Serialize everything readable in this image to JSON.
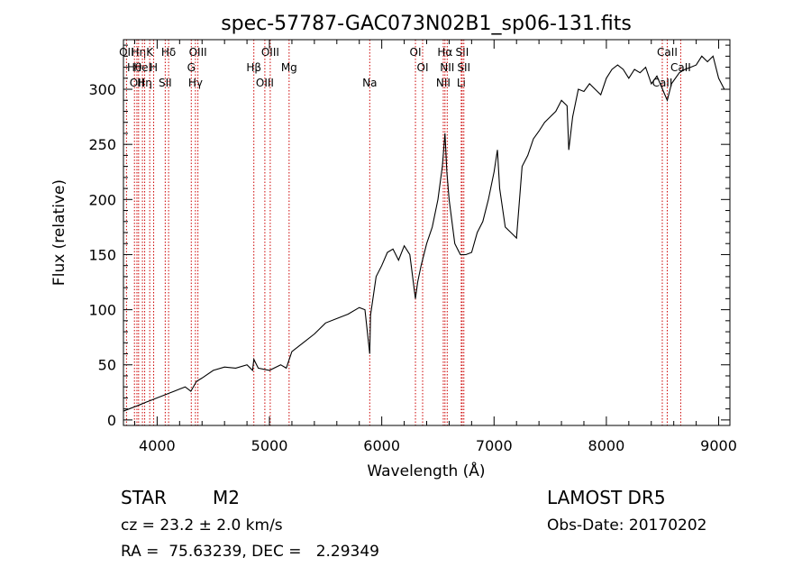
{
  "chart_data": {
    "type": "line",
    "title": "spec-57787-GAC073N02B1_sp06-131.fits",
    "xlabel": "Wavelength (Å)",
    "ylabel": "Flux (relative)",
    "xlim": [
      3700,
      9100
    ],
    "ylim": [
      -5,
      345
    ],
    "x_ticks": [
      4000,
      5000,
      6000,
      7000,
      8000,
      9000
    ],
    "y_ticks": [
      0,
      50,
      100,
      150,
      200,
      250,
      300
    ],
    "x_tick_labels": [
      "4000",
      "5000",
      "6000",
      "7000",
      "8000",
      "9000"
    ],
    "y_tick_labels": [
      "0",
      "50",
      "100",
      "150",
      "200",
      "250",
      "300"
    ],
    "grid": false,
    "series": [
      {
        "color": "#000000",
        "x": [
          3700,
          3750,
          3800,
          3850,
          3900,
          3950,
          4000,
          4050,
          4100,
          4150,
          4200,
          4250,
          4300,
          4350,
          4400,
          4500,
          4600,
          4700,
          4800,
          4850,
          4861,
          4900,
          5000,
          5100,
          5150,
          5200,
          5300,
          5400,
          5500,
          5600,
          5700,
          5800,
          5850,
          5893,
          5900,
          5950,
          6000,
          6050,
          6100,
          6150,
          6200,
          6250,
          6300,
          6320,
          6350,
          6400,
          6450,
          6500,
          6540,
          6563,
          6580,
          6600,
          6650,
          6700,
          6750,
          6800,
          6850,
          6900,
          6950,
          7000,
          7030,
          7050,
          7100,
          7150,
          7200,
          7250,
          7300,
          7350,
          7400,
          7450,
          7500,
          7550,
          7600,
          7650,
          7665,
          7700,
          7750,
          7800,
          7850,
          7900,
          7950,
          8000,
          8050,
          8100,
          8150,
          8200,
          8250,
          8300,
          8350,
          8400,
          8450,
          8500,
          8542,
          8580,
          8650,
          8700,
          8750,
          8800,
          8850,
          8900,
          8950,
          9000,
          9050
        ],
        "y": [
          8,
          10,
          12,
          14,
          16,
          18,
          20,
          22,
          24,
          26,
          28,
          30,
          26,
          35,
          38,
          45,
          48,
          47,
          50,
          45,
          55,
          47,
          45,
          50,
          47,
          62,
          70,
          78,
          88,
          92,
          96,
          102,
          100,
          60,
          95,
          130,
          140,
          152,
          155,
          145,
          158,
          150,
          110,
          125,
          140,
          160,
          175,
          200,
          230,
          260,
          225,
          200,
          160,
          150,
          150,
          152,
          170,
          180,
          200,
          225,
          245,
          210,
          175,
          170,
          165,
          230,
          240,
          255,
          262,
          270,
          275,
          280,
          290,
          285,
          245,
          275,
          300,
          298,
          305,
          300,
          295,
          310,
          318,
          322,
          318,
          310,
          318,
          315,
          320,
          305,
          312,
          300,
          290,
          305,
          315,
          318,
          320,
          322,
          330,
          325,
          330,
          310,
          300
        ]
      }
    ],
    "line_ids": [
      {
        "w": 3727,
        "label": "OII"
      },
      {
        "w": 3798,
        "label": "Hθ"
      },
      {
        "w": 3820,
        "label": "OII"
      },
      {
        "w": 3835,
        "label": "Hη"
      },
      {
        "w": 3869,
        "label": "HeI"
      },
      {
        "w": 3889,
        "label": "Hη"
      },
      {
        "w": 3934,
        "label": "K"
      },
      {
        "w": 3969,
        "label": "H"
      },
      {
        "w": 4072,
        "label": "SII"
      },
      {
        "w": 4102,
        "label": "Hδ"
      },
      {
        "w": 4304,
        "label": "G"
      },
      {
        "w": 4341,
        "label": "Hγ"
      },
      {
        "w": 4363,
        "label": "OIII"
      },
      {
        "w": 4861,
        "label": "Hβ"
      },
      {
        "w": 4959,
        "label": "OIII"
      },
      {
        "w": 5007,
        "label": "OIII"
      },
      {
        "w": 5175,
        "label": "Mg"
      },
      {
        "w": 5893,
        "label": "Na"
      },
      {
        "w": 6300,
        "label": "OI"
      },
      {
        "w": 6364,
        "label": "OI"
      },
      {
        "w": 6548,
        "label": "NII"
      },
      {
        "w": 6563,
        "label": "Hα"
      },
      {
        "w": 6583,
        "label": "NII"
      },
      {
        "w": 6708,
        "label": "Li"
      },
      {
        "w": 6716,
        "label": "SII"
      },
      {
        "w": 6731,
        "label": "SII"
      },
      {
        "w": 8498,
        "label": "CaII"
      },
      {
        "w": 8542,
        "label": "CaII"
      },
      {
        "w": 8662,
        "label": "CaII"
      }
    ],
    "line_id_color": "#cc0000"
  },
  "info": {
    "object_type": "STAR",
    "subclass": "M2",
    "survey": "LAMOST DR5",
    "redshift": "cz = 23.2 ± 2.0 km/s",
    "obs_date": "Obs-Date: 20170202",
    "coords": "RA =  75.63239, DEC =   2.29349"
  }
}
